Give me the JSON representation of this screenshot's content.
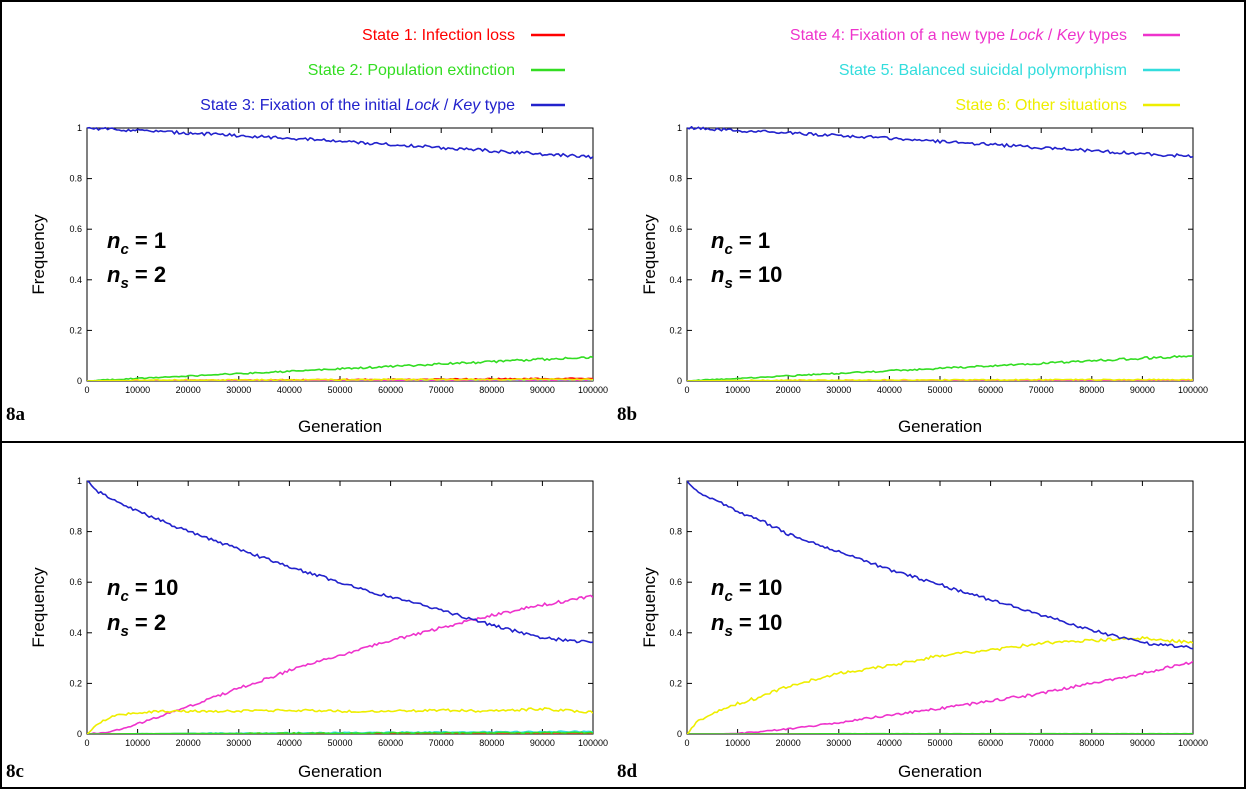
{
  "legend": {
    "items": [
      {
        "state": "State 1",
        "parts": [
          {
            "t": ": Infection loss"
          }
        ],
        "color": "#ff0000"
      },
      {
        "state": "State 2",
        "parts": [
          {
            "t": ": Population extinction"
          }
        ],
        "color": "#33dd22"
      },
      {
        "state": "State 3",
        "parts": [
          {
            "t": ": Fixation of the initial "
          },
          {
            "t": "Lock",
            "i": true
          },
          {
            "t": " / "
          },
          {
            "t": "Key",
            "i": true
          },
          {
            "t": " type"
          }
        ],
        "color": "#2222cc"
      },
      {
        "state": "State 4",
        "parts": [
          {
            "t": ": Fixation of a new type "
          },
          {
            "t": "Lock",
            "i": true
          },
          {
            "t": " / "
          },
          {
            "t": "Key",
            "i": true
          },
          {
            "t": " types"
          }
        ],
        "color": "#ee33cc"
      },
      {
        "state": "State 5",
        "parts": [
          {
            "t": ": Balanced suicidal polymorphism"
          }
        ],
        "color": "#33dddd"
      },
      {
        "state": "State 6",
        "parts": [
          {
            "t": ": Other situations"
          }
        ],
        "color": "#eeee00"
      }
    ]
  },
  "chart_data": [
    {
      "type": "line",
      "panel": "8a",
      "xlabel": "Generation",
      "ylabel": "Frequency",
      "xlim": [
        0,
        100000
      ],
      "ylim": [
        0,
        1
      ],
      "x_ticks": [
        0,
        10000,
        20000,
        30000,
        40000,
        50000,
        60000,
        70000,
        80000,
        90000,
        100000
      ],
      "y_ticks": [
        0,
        0.2,
        0.4,
        0.6,
        0.8,
        1
      ],
      "params": {
        "nc": "1",
        "ns": "2"
      },
      "x": [
        0,
        10000,
        20000,
        30000,
        40000,
        50000,
        60000,
        70000,
        80000,
        90000,
        100000
      ],
      "series": [
        {
          "name": "State 1",
          "values": [
            0,
            0.001,
            0.002,
            0.003,
            0.004,
            0.005,
            0.006,
            0.007,
            0.008,
            0.009,
            0.01
          ]
        },
        {
          "name": "State 2",
          "values": [
            0,
            0.01,
            0.02,
            0.029,
            0.038,
            0.048,
            0.057,
            0.067,
            0.076,
            0.086,
            0.095
          ]
        },
        {
          "name": "State 3",
          "values": [
            1,
            0.99,
            0.98,
            0.97,
            0.96,
            0.947,
            0.935,
            0.922,
            0.91,
            0.897,
            0.885
          ]
        },
        {
          "name": "State 4",
          "values": [
            0,
            0,
            0.001,
            0.001,
            0.002,
            0.002,
            0.003,
            0.003,
            0.004,
            0.004,
            0.005
          ]
        },
        {
          "name": "State 5",
          "values": [
            0,
            0,
            0,
            0,
            0,
            0,
            0,
            0,
            0,
            0,
            0
          ]
        },
        {
          "name": "State 6",
          "values": [
            0,
            0.003,
            0.004,
            0.004,
            0.005,
            0.005,
            0.006,
            0.006,
            0.006,
            0.007,
            0.007
          ]
        }
      ]
    },
    {
      "type": "line",
      "panel": "8b",
      "xlabel": "Generation",
      "ylabel": "Frequency",
      "xlim": [
        0,
        100000
      ],
      "ylim": [
        0,
        1
      ],
      "x_ticks": [
        0,
        10000,
        20000,
        30000,
        40000,
        50000,
        60000,
        70000,
        80000,
        90000,
        100000
      ],
      "y_ticks": [
        0,
        0.2,
        0.4,
        0.6,
        0.8,
        1
      ],
      "params": {
        "nc": "1",
        "ns": "10"
      },
      "x": [
        0,
        10000,
        20000,
        30000,
        40000,
        50000,
        60000,
        70000,
        80000,
        90000,
        100000
      ],
      "series": [
        {
          "name": "State 1",
          "values": [
            0,
            0,
            0,
            0.001,
            0.001,
            0.001,
            0.001,
            0.002,
            0.002,
            0.002,
            0.002
          ]
        },
        {
          "name": "State 2",
          "values": [
            0,
            0.01,
            0.02,
            0.03,
            0.04,
            0.05,
            0.06,
            0.07,
            0.08,
            0.09,
            0.1
          ]
        },
        {
          "name": "State 3",
          "values": [
            1,
            0.99,
            0.98,
            0.97,
            0.96,
            0.947,
            0.935,
            0.922,
            0.91,
            0.898,
            0.888
          ]
        },
        {
          "name": "State 4",
          "values": [
            0,
            0,
            0,
            0,
            0.001,
            0.001,
            0.001,
            0.001,
            0.001,
            0.001,
            0.001
          ]
        },
        {
          "name": "State 5",
          "values": [
            0,
            0,
            0,
            0,
            0,
            0,
            0,
            0,
            0,
            0,
            0
          ]
        },
        {
          "name": "State 6",
          "values": [
            0,
            0.002,
            0.003,
            0.003,
            0.004,
            0.004,
            0.004,
            0.005,
            0.005,
            0.005,
            0.005
          ]
        }
      ]
    },
    {
      "type": "line",
      "panel": "8c",
      "xlabel": "Generation",
      "ylabel": "Frequency",
      "xlim": [
        0,
        100000
      ],
      "ylim": [
        0,
        1
      ],
      "x_ticks": [
        0,
        10000,
        20000,
        30000,
        40000,
        50000,
        60000,
        70000,
        80000,
        90000,
        100000
      ],
      "y_ticks": [
        0,
        0.2,
        0.4,
        0.6,
        0.8,
        1
      ],
      "params": {
        "nc": "10",
        "ns": "2"
      },
      "x": [
        0,
        2000,
        5000,
        10000,
        15000,
        20000,
        30000,
        40000,
        50000,
        60000,
        70000,
        80000,
        90000,
        100000
      ],
      "series": [
        {
          "name": "State 1",
          "values": [
            0,
            0,
            0,
            0,
            0,
            0,
            0,
            0,
            0,
            0,
            0,
            0,
            0,
            0
          ]
        },
        {
          "name": "State 2",
          "values": [
            0,
            0,
            0,
            0.001,
            0.001,
            0.002,
            0.002,
            0.003,
            0.003,
            0.004,
            0.004,
            0.005,
            0.005,
            0.005
          ]
        },
        {
          "name": "State 3",
          "values": [
            1,
            0.96,
            0.93,
            0.88,
            0.84,
            0.8,
            0.73,
            0.66,
            0.6,
            0.54,
            0.49,
            0.43,
            0.38,
            0.36
          ]
        },
        {
          "name": "State 4",
          "values": [
            0,
            0.003,
            0.01,
            0.04,
            0.075,
            0.11,
            0.18,
            0.25,
            0.31,
            0.37,
            0.42,
            0.47,
            0.51,
            0.545
          ]
        },
        {
          "name": "State 5",
          "values": [
            0,
            0,
            0,
            0.001,
            0.001,
            0.002,
            0.003,
            0.004,
            0.005,
            0.006,
            0.007,
            0.008,
            0.009,
            0.01
          ]
        },
        {
          "name": "State 6",
          "values": [
            0,
            0.04,
            0.07,
            0.085,
            0.09,
            0.09,
            0.09,
            0.095,
            0.09,
            0.09,
            0.095,
            0.09,
            0.1,
            0.085
          ]
        }
      ]
    },
    {
      "type": "line",
      "panel": "8d",
      "xlabel": "Generation",
      "ylabel": "Frequency",
      "xlim": [
        0,
        100000
      ],
      "ylim": [
        0,
        1
      ],
      "x_ticks": [
        0,
        10000,
        20000,
        30000,
        40000,
        50000,
        60000,
        70000,
        80000,
        90000,
        100000
      ],
      "y_ticks": [
        0,
        0.2,
        0.4,
        0.6,
        0.8,
        1
      ],
      "params": {
        "nc": "10",
        "ns": "10"
      },
      "x": [
        0,
        2000,
        5000,
        10000,
        15000,
        20000,
        30000,
        40000,
        50000,
        60000,
        70000,
        80000,
        90000,
        100000
      ],
      "series": [
        {
          "name": "State 1",
          "values": [
            0,
            0,
            0,
            0,
            0,
            0,
            0,
            0,
            0,
            0,
            0,
            0,
            0,
            0
          ]
        },
        {
          "name": "State 2",
          "values": [
            0,
            0,
            0,
            0,
            0,
            0,
            0.001,
            0.001,
            0.001,
            0.001,
            0.001,
            0.001,
            0.001,
            0.001
          ]
        },
        {
          "name": "State 3",
          "values": [
            1,
            0.96,
            0.93,
            0.88,
            0.84,
            0.79,
            0.72,
            0.65,
            0.59,
            0.53,
            0.47,
            0.41,
            0.36,
            0.34
          ]
        },
        {
          "name": "State 4",
          "values": [
            0,
            0,
            0,
            0.002,
            0.01,
            0.02,
            0.045,
            0.075,
            0.1,
            0.13,
            0.16,
            0.2,
            0.24,
            0.285
          ]
        },
        {
          "name": "State 5",
          "values": [
            0,
            0,
            0,
            0,
            0,
            0,
            0,
            0,
            0,
            0,
            0,
            0,
            0,
            0
          ]
        },
        {
          "name": "State 6",
          "values": [
            0,
            0.05,
            0.08,
            0.12,
            0.15,
            0.19,
            0.24,
            0.27,
            0.31,
            0.33,
            0.36,
            0.37,
            0.38,
            0.36
          ]
        }
      ]
    }
  ]
}
